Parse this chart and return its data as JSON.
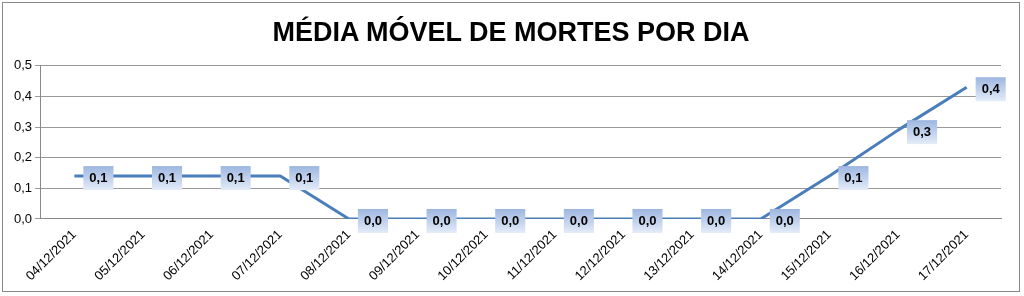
{
  "chart_data": {
    "type": "line",
    "title": "MÉDIA MÓVEL DE MORTES POR DIA",
    "categories": [
      "04/12/2021",
      "05/12/2021",
      "06/12/2021",
      "07/12/2021",
      "08/12/2021",
      "09/12/2021",
      "10/12/2021",
      "11/12/2021",
      "12/12/2021",
      "13/12/2021",
      "14/12/2021",
      "15/12/2021",
      "16/12/2021",
      "17/12/2021"
    ],
    "series": [
      {
        "color": "#4a7ebb",
        "values": [
          0.14,
          0.14,
          0.14,
          0.14,
          0,
          0,
          0,
          0,
          0,
          0,
          0,
          0.14,
          0.29,
          0.43
        ],
        "value_labels": [
          "0,1",
          "0,1",
          "0,1",
          "0,1",
          "0,0",
          "0,0",
          "0,0",
          "0,0",
          "0,0",
          "0,0",
          "0,0",
          "0,1",
          "0,3",
          "0,4"
        ]
      }
    ],
    "ylim": [
      0,
      0.5
    ],
    "yticks": [
      {
        "value": 0,
        "label": "0,0"
      },
      {
        "value": 0.1,
        "label": "0,1"
      },
      {
        "value": 0.2,
        "label": "0,2"
      },
      {
        "value": 0.3,
        "label": "0,3"
      },
      {
        "value": 0.4,
        "label": "0,4"
      },
      {
        "value": 0.5,
        "label": "0,5"
      }
    ],
    "grid": "y",
    "legend": false,
    "marker": "none",
    "line_style": "solid"
  }
}
